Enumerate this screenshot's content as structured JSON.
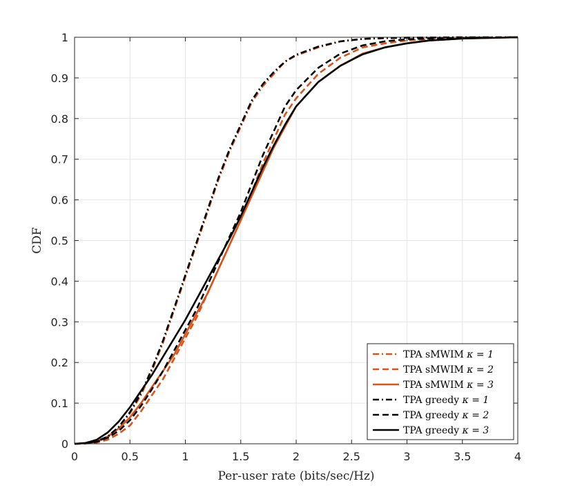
{
  "chart_data": {
    "type": "line",
    "title": "",
    "xlabel": "Per-user rate (bits/sec/Hz)",
    "ylabel": "CDF",
    "xlim": [
      0,
      4
    ],
    "ylim": [
      0,
      1
    ],
    "grid": true,
    "legend_position": "bottom-right",
    "x_ticks": [
      "0",
      "0.5",
      "1",
      "1.5",
      "2",
      "2.5",
      "3",
      "3.5",
      "4"
    ],
    "y_ticks": [
      "0",
      "0.1",
      "0.2",
      "0.3",
      "0.4",
      "0.5",
      "0.6",
      "0.7",
      "0.8",
      "0.9",
      "1"
    ],
    "series": [
      {
        "name": "TPA sMWIM κ = 1",
        "legend_prefix": "TPA sMWIM ",
        "legend_math": "κ = 1",
        "color": "#D95319",
        "dash": "dashdot",
        "x": [
          0,
          0.1,
          0.2,
          0.3,
          0.4,
          0.5,
          0.6,
          0.7,
          0.8,
          0.9,
          1.0,
          1.1,
          1.2,
          1.3,
          1.4,
          1.5,
          1.6,
          1.7,
          1.8,
          1.9,
          2.0,
          2.2,
          2.4,
          2.6,
          2.8,
          3.0,
          3.5,
          4.0
        ],
        "y": [
          0,
          0.001,
          0.005,
          0.016,
          0.04,
          0.075,
          0.12,
          0.18,
          0.25,
          0.33,
          0.41,
          0.49,
          0.57,
          0.65,
          0.72,
          0.78,
          0.84,
          0.88,
          0.91,
          0.94,
          0.955,
          0.975,
          0.99,
          0.996,
          0.998,
          0.999,
          1.0,
          1.0
        ]
      },
      {
        "name": "TPA sMWIM κ = 2",
        "legend_prefix": "TPA sMWIM ",
        "legend_math": "κ = 2",
        "color": "#D95319",
        "dash": "dashed",
        "x": [
          0,
          0.1,
          0.2,
          0.3,
          0.4,
          0.5,
          0.6,
          0.7,
          0.8,
          0.9,
          1.0,
          1.1,
          1.2,
          1.3,
          1.4,
          1.5,
          1.6,
          1.7,
          1.8,
          1.9,
          2.0,
          2.2,
          2.4,
          2.6,
          2.8,
          3.0,
          3.2,
          3.5,
          4.0
        ],
        "y": [
          0,
          0.0005,
          0.003,
          0.01,
          0.025,
          0.045,
          0.08,
          0.12,
          0.16,
          0.21,
          0.26,
          0.31,
          0.37,
          0.43,
          0.49,
          0.55,
          0.62,
          0.69,
          0.75,
          0.81,
          0.85,
          0.91,
          0.95,
          0.975,
          0.985,
          0.992,
          0.996,
          0.999,
          1.0
        ]
      },
      {
        "name": "TPA sMWIM κ = 3",
        "legend_prefix": "TPA sMWIM ",
        "legend_math": "κ = 3",
        "color": "#D95319",
        "dash": "solid",
        "x": [
          0,
          0.1,
          0.2,
          0.3,
          0.4,
          0.5,
          0.6,
          0.7,
          0.8,
          0.9,
          1.0,
          1.1,
          1.2,
          1.3,
          1.4,
          1.5,
          1.6,
          1.7,
          1.8,
          1.9,
          2.0,
          2.2,
          2.4,
          2.6,
          2.8,
          3.0,
          3.2,
          3.5,
          4.0
        ],
        "y": [
          0,
          0.001,
          0.006,
          0.018,
          0.038,
          0.065,
          0.1,
          0.14,
          0.18,
          0.22,
          0.27,
          0.32,
          0.37,
          0.43,
          0.49,
          0.55,
          0.61,
          0.67,
          0.73,
          0.78,
          0.83,
          0.89,
          0.93,
          0.96,
          0.975,
          0.985,
          0.992,
          0.997,
          1.0
        ]
      },
      {
        "name": "TPA greedy κ = 1",
        "legend_prefix": "TPA greedy ",
        "legend_math": "κ = 1",
        "color": "#000000",
        "dash": "dashdot",
        "x": [
          0,
          0.1,
          0.2,
          0.3,
          0.4,
          0.5,
          0.6,
          0.7,
          0.8,
          0.9,
          1.0,
          1.1,
          1.2,
          1.3,
          1.4,
          1.5,
          1.6,
          1.7,
          1.8,
          1.9,
          2.0,
          2.2,
          2.4,
          2.6,
          2.8,
          3.0,
          3.5,
          4.0
        ],
        "y": [
          0,
          0.001,
          0.006,
          0.018,
          0.042,
          0.078,
          0.125,
          0.185,
          0.255,
          0.335,
          0.415,
          0.495,
          0.575,
          0.655,
          0.725,
          0.785,
          0.845,
          0.885,
          0.915,
          0.94,
          0.957,
          0.977,
          0.99,
          0.996,
          0.998,
          0.999,
          1.0,
          1.0
        ]
      },
      {
        "name": "TPA greedy κ = 2",
        "legend_prefix": "TPA greedy ",
        "legend_math": "κ = 2",
        "color": "#000000",
        "dash": "dashed",
        "x": [
          0,
          0.1,
          0.2,
          0.3,
          0.4,
          0.5,
          0.6,
          0.7,
          0.8,
          0.9,
          1.0,
          1.1,
          1.2,
          1.3,
          1.4,
          1.5,
          1.6,
          1.7,
          1.8,
          1.9,
          2.0,
          2.2,
          2.4,
          2.6,
          2.8,
          3.0,
          3.2,
          3.5,
          4.0
        ],
        "y": [
          0,
          0.001,
          0.005,
          0.015,
          0.032,
          0.058,
          0.093,
          0.135,
          0.18,
          0.23,
          0.28,
          0.33,
          0.39,
          0.45,
          0.51,
          0.57,
          0.64,
          0.71,
          0.77,
          0.83,
          0.87,
          0.925,
          0.96,
          0.98,
          0.99,
          0.995,
          0.997,
          0.999,
          1.0
        ]
      },
      {
        "name": "TPA greedy κ = 3",
        "legend_prefix": "TPA greedy ",
        "legend_math": "κ = 3",
        "color": "#000000",
        "dash": "solid",
        "x": [
          0,
          0.1,
          0.2,
          0.3,
          0.4,
          0.5,
          0.6,
          0.7,
          0.8,
          0.9,
          1.0,
          1.1,
          1.2,
          1.3,
          1.4,
          1.5,
          1.6,
          1.7,
          1.8,
          1.9,
          2.0,
          2.2,
          2.4,
          2.6,
          2.8,
          3.0,
          3.2,
          3.5,
          4.0
        ],
        "y": [
          0,
          0.002,
          0.01,
          0.028,
          0.055,
          0.09,
          0.13,
          0.17,
          0.215,
          0.26,
          0.305,
          0.355,
          0.405,
          0.455,
          0.505,
          0.56,
          0.62,
          0.68,
          0.735,
          0.785,
          0.83,
          0.89,
          0.93,
          0.958,
          0.975,
          0.985,
          0.992,
          0.997,
          1.0
        ]
      }
    ]
  }
}
